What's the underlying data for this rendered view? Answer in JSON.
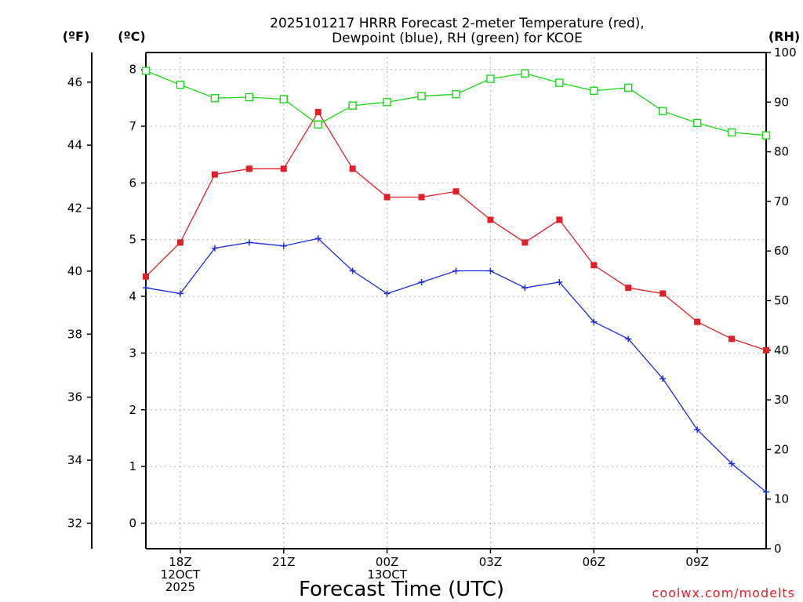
{
  "chart_data": {
    "type": "line",
    "title": [
      "2025101217 HRRR Forecast 2-meter Temperature (red),",
      "Dewpoint (blue), RH (green) for KCOE"
    ],
    "xlabel": "Forecast Time (UTC)",
    "units": {
      "f": "(ºF)",
      "c": "(ºC)",
      "rh": "(RH)"
    },
    "credit": "coolwx.com/modelts",
    "x_hours": [
      17,
      18,
      19,
      20,
      21,
      22,
      23,
      24,
      25,
      26,
      27,
      28,
      29,
      30,
      31,
      32,
      33,
      34,
      35
    ],
    "xlim": [
      17,
      35
    ],
    "xticks": [
      {
        "x": 18,
        "lines": [
          "18Z",
          "12OCT",
          "2025"
        ]
      },
      {
        "x": 21,
        "lines": [
          "21Z"
        ]
      },
      {
        "x": 24,
        "lines": [
          "00Z",
          "13OCT"
        ]
      },
      {
        "x": 27,
        "lines": [
          "03Z"
        ]
      },
      {
        "x": 30,
        "lines": [
          "06Z"
        ]
      },
      {
        "x": 33,
        "lines": [
          "09Z"
        ]
      }
    ],
    "y_celsius": {
      "lim": [
        -0.45,
        8.3
      ],
      "ticks": [
        0,
        1,
        2,
        3,
        4,
        5,
        6,
        7,
        8
      ]
    },
    "y_fahrenheit": {
      "ticks": [
        32,
        34,
        36,
        38,
        40,
        42,
        44,
        46
      ]
    },
    "y_rh": {
      "lim": [
        0,
        100
      ],
      "ticks": [
        0,
        10,
        20,
        30,
        40,
        50,
        60,
        70,
        80,
        90,
        100
      ]
    },
    "series": [
      {
        "name": "Temperature",
        "axis": "c",
        "color": "#e02028",
        "marker": "filled-square",
        "values": [
          4.35,
          4.95,
          6.15,
          6.25,
          6.25,
          7.25,
          6.25,
          5.75,
          5.75,
          5.85,
          5.35,
          4.95,
          5.35,
          4.55,
          4.15,
          4.05,
          3.55,
          3.25,
          3.05
        ]
      },
      {
        "name": "Dewpoint",
        "axis": "c",
        "color": "#1a2be0",
        "marker": "plus",
        "values": [
          4.15,
          4.05,
          4.85,
          4.95,
          4.89,
          5.02,
          4.45,
          4.05,
          4.25,
          4.45,
          4.45,
          4.15,
          4.25,
          3.55,
          3.25,
          2.55,
          1.65,
          1.05,
          0.55
        ]
      },
      {
        "name": "RH",
        "axis": "rh",
        "color": "#1ad81a",
        "marker": "open-square",
        "values": [
          96.3,
          93.5,
          90.8,
          91.0,
          90.6,
          85.5,
          89.3,
          90.0,
          91.2,
          91.6,
          94.7,
          95.8,
          93.9,
          92.3,
          92.9,
          88.2,
          85.8,
          83.9,
          83.3
        ]
      }
    ]
  }
}
